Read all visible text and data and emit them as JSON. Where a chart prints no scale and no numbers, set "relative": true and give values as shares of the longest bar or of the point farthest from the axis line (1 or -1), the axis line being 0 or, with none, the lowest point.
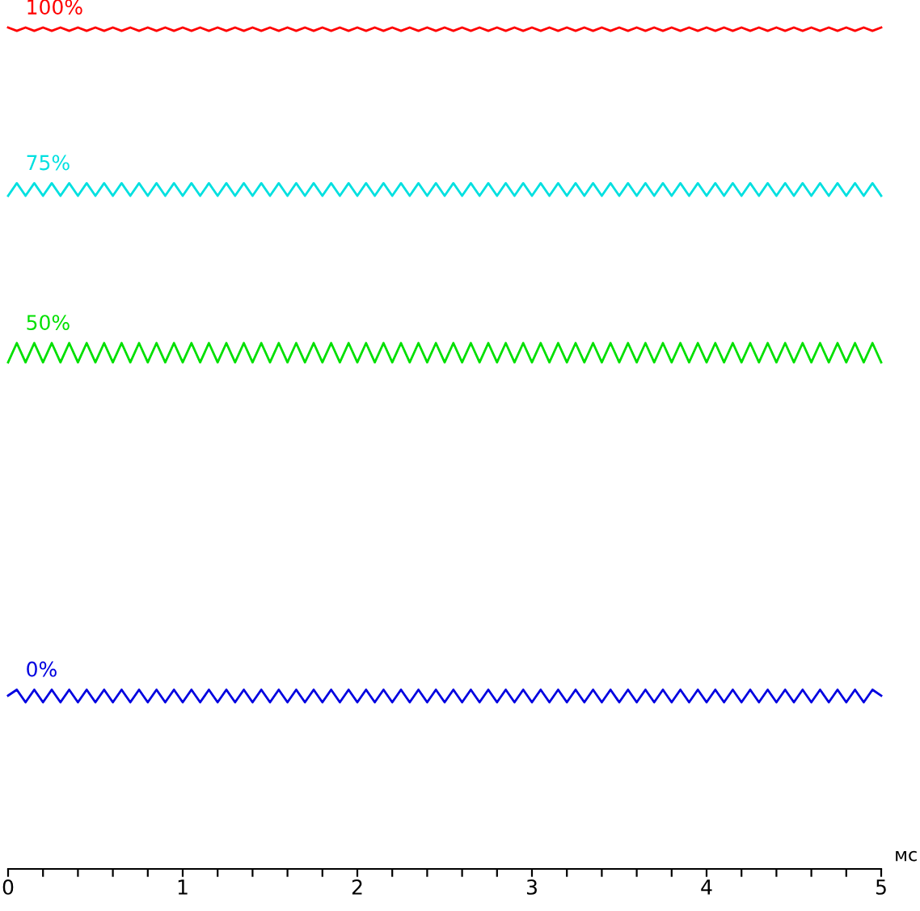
{
  "chart_data": {
    "type": "line",
    "relative": true,
    "xlabel": "мс",
    "legend": false,
    "grid": false,
    "marker": "none",
    "line_style": "solid",
    "xlim": [
      0,
      5
    ],
    "xticks": [
      0,
      {
        "value": 0.2,
        "label": null
      },
      {
        "value": 0.4,
        "label": null
      },
      {
        "value": 0.6,
        "label": null
      },
      {
        "value": 0.8,
        "label": null
      },
      1,
      {
        "value": 1.2,
        "label": null
      },
      {
        "value": 1.4,
        "label": null
      },
      {
        "value": 1.6,
        "label": null
      },
      {
        "value": 1.8,
        "label": null
      },
      2,
      {
        "value": 2.2,
        "label": null
      },
      {
        "value": 2.4,
        "label": null
      },
      {
        "value": 2.6,
        "label": null
      },
      {
        "value": 2.8,
        "label": null
      },
      3,
      {
        "value": 3.2,
        "label": null
      },
      {
        "value": 3.4,
        "label": null
      },
      {
        "value": 3.6,
        "label": null
      },
      {
        "value": 3.8,
        "label": null
      },
      4,
      {
        "value": 4.2,
        "label": null
      },
      {
        "value": 4.4,
        "label": null
      },
      {
        "value": 4.6,
        "label": null
      },
      {
        "value": 4.8,
        "label": null
      },
      5
    ],
    "x": [
      0,
      0.05,
      0.1,
      0.15,
      0.2,
      0.25,
      0.3,
      0.35,
      0.4,
      0.45,
      0.5,
      0.55,
      0.6,
      0.65,
      0.7,
      0.75,
      0.8,
      0.85,
      0.9,
      0.95,
      1.0,
      1.05,
      1.1,
      1.15,
      1.2,
      1.25,
      1.3,
      1.35,
      1.4,
      1.45,
      1.5,
      1.55,
      1.6,
      1.65,
      1.7,
      1.75,
      1.8,
      1.85,
      1.9,
      1.95,
      2.0,
      2.05,
      2.1,
      2.15,
      2.2,
      2.25,
      2.3,
      2.35,
      2.4,
      2.45,
      2.5,
      2.55,
      2.6,
      2.65,
      2.7,
      2.75,
      2.8,
      2.85,
      2.9,
      2.95,
      3.0,
      3.05,
      3.1,
      3.15,
      3.2,
      3.25,
      3.3,
      3.35,
      3.4,
      3.45,
      3.5,
      3.55,
      3.6,
      3.65,
      3.7,
      3.75,
      3.8,
      3.85,
      3.9,
      3.95,
      4.0,
      4.05,
      4.1,
      4.15,
      4.2,
      4.25,
      4.3,
      4.35,
      4.4,
      4.45,
      4.5,
      4.55,
      4.6,
      4.65,
      4.7,
      4.75,
      4.8,
      4.85,
      4.9,
      4.95,
      5.0
    ],
    "series": [
      {
        "name": "100%",
        "color": "#ff0000",
        "values": [
          1,
          0.996,
          1,
          0.996,
          1,
          0.996,
          1,
          0.996,
          1,
          0.996,
          1,
          0.996,
          1,
          0.996,
          1,
          0.996,
          1,
          0.996,
          1,
          0.996,
          1,
          0.996,
          1,
          0.996,
          1,
          0.996,
          1,
          0.996,
          1,
          0.996,
          1,
          0.996,
          1,
          0.996,
          1,
          0.996,
          1,
          0.996,
          1,
          0.996,
          1,
          0.996,
          1,
          0.996,
          1,
          0.996,
          1,
          0.996,
          1,
          0.996,
          1,
          0.996,
          1,
          0.996,
          1,
          0.996,
          1,
          0.996,
          1,
          0.996,
          1,
          0.996,
          1,
          0.996,
          1,
          0.996,
          1,
          0.996,
          1,
          0.996,
          1,
          0.996,
          1,
          0.996,
          1,
          0.996,
          1,
          0.996,
          1,
          0.996,
          1,
          0.996,
          1,
          0.996,
          1,
          0.996,
          1,
          0.996,
          1,
          0.996,
          1,
          0.996,
          1,
          0.996,
          1,
          0.996,
          1,
          0.996,
          1,
          0.996,
          1
        ]
      },
      {
        "name": "75%",
        "color": "#00e0e0",
        "values": [
          0.8,
          0.815,
          0.8,
          0.815,
          0.8,
          0.815,
          0.8,
          0.815,
          0.8,
          0.815,
          0.8,
          0.815,
          0.8,
          0.815,
          0.8,
          0.815,
          0.8,
          0.815,
          0.8,
          0.815,
          0.8,
          0.815,
          0.8,
          0.815,
          0.8,
          0.815,
          0.8,
          0.815,
          0.8,
          0.815,
          0.8,
          0.815,
          0.8,
          0.815,
          0.8,
          0.815,
          0.8,
          0.815,
          0.8,
          0.815,
          0.8,
          0.815,
          0.8,
          0.815,
          0.8,
          0.815,
          0.8,
          0.815,
          0.8,
          0.815,
          0.8,
          0.815,
          0.8,
          0.815,
          0.8,
          0.815,
          0.8,
          0.815,
          0.8,
          0.815,
          0.8,
          0.815,
          0.8,
          0.815,
          0.8,
          0.815,
          0.8,
          0.815,
          0.8,
          0.815,
          0.8,
          0.815,
          0.8,
          0.815,
          0.8,
          0.815,
          0.8,
          0.815,
          0.8,
          0.815,
          0.8,
          0.815,
          0.8,
          0.815,
          0.8,
          0.815,
          0.8,
          0.815,
          0.8,
          0.815,
          0.8,
          0.815,
          0.8,
          0.815,
          0.8,
          0.815,
          0.8,
          0.815,
          0.8,
          0.815,
          0.8
        ]
      },
      {
        "name": "50%",
        "color": "#00e000",
        "values": [
          0.602,
          0.625,
          0.602,
          0.625,
          0.602,
          0.625,
          0.602,
          0.625,
          0.602,
          0.625,
          0.602,
          0.625,
          0.602,
          0.625,
          0.602,
          0.625,
          0.602,
          0.625,
          0.602,
          0.625,
          0.602,
          0.625,
          0.602,
          0.625,
          0.602,
          0.625,
          0.602,
          0.625,
          0.602,
          0.625,
          0.602,
          0.625,
          0.602,
          0.625,
          0.602,
          0.625,
          0.602,
          0.625,
          0.602,
          0.625,
          0.602,
          0.625,
          0.602,
          0.625,
          0.602,
          0.625,
          0.602,
          0.625,
          0.602,
          0.625,
          0.602,
          0.625,
          0.602,
          0.625,
          0.602,
          0.625,
          0.602,
          0.625,
          0.602,
          0.625,
          0.602,
          0.625,
          0.602,
          0.625,
          0.602,
          0.625,
          0.602,
          0.625,
          0.602,
          0.625,
          0.602,
          0.625,
          0.602,
          0.625,
          0.602,
          0.625,
          0.602,
          0.625,
          0.602,
          0.625,
          0.602,
          0.625,
          0.602,
          0.625,
          0.602,
          0.625,
          0.602,
          0.625,
          0.602,
          0.625,
          0.602,
          0.625,
          0.602,
          0.625,
          0.602,
          0.625,
          0.602,
          0.625,
          0.602,
          0.625,
          0.602
        ]
      },
      {
        "name": "0%",
        "color": "#0000e0",
        "values": [
          0.206,
          0.213,
          0.198,
          0.213,
          0.198,
          0.213,
          0.198,
          0.213,
          0.198,
          0.213,
          0.198,
          0.213,
          0.198,
          0.213,
          0.198,
          0.213,
          0.198,
          0.213,
          0.198,
          0.213,
          0.198,
          0.213,
          0.198,
          0.213,
          0.198,
          0.213,
          0.198,
          0.213,
          0.198,
          0.213,
          0.198,
          0.213,
          0.198,
          0.213,
          0.198,
          0.213,
          0.198,
          0.213,
          0.198,
          0.213,
          0.198,
          0.213,
          0.198,
          0.213,
          0.198,
          0.213,
          0.198,
          0.213,
          0.198,
          0.213,
          0.198,
          0.213,
          0.198,
          0.213,
          0.198,
          0.213,
          0.198,
          0.213,
          0.198,
          0.213,
          0.198,
          0.213,
          0.198,
          0.213,
          0.198,
          0.213,
          0.198,
          0.213,
          0.198,
          0.213,
          0.198,
          0.213,
          0.198,
          0.213,
          0.198,
          0.213,
          0.198,
          0.213,
          0.198,
          0.213,
          0.198,
          0.213,
          0.198,
          0.213,
          0.198,
          0.213,
          0.198,
          0.213,
          0.198,
          0.213,
          0.198,
          0.213,
          0.198,
          0.213,
          0.198,
          0.213,
          0.198,
          0.213,
          0.198,
          0.213,
          0.206
        ]
      }
    ]
  }
}
